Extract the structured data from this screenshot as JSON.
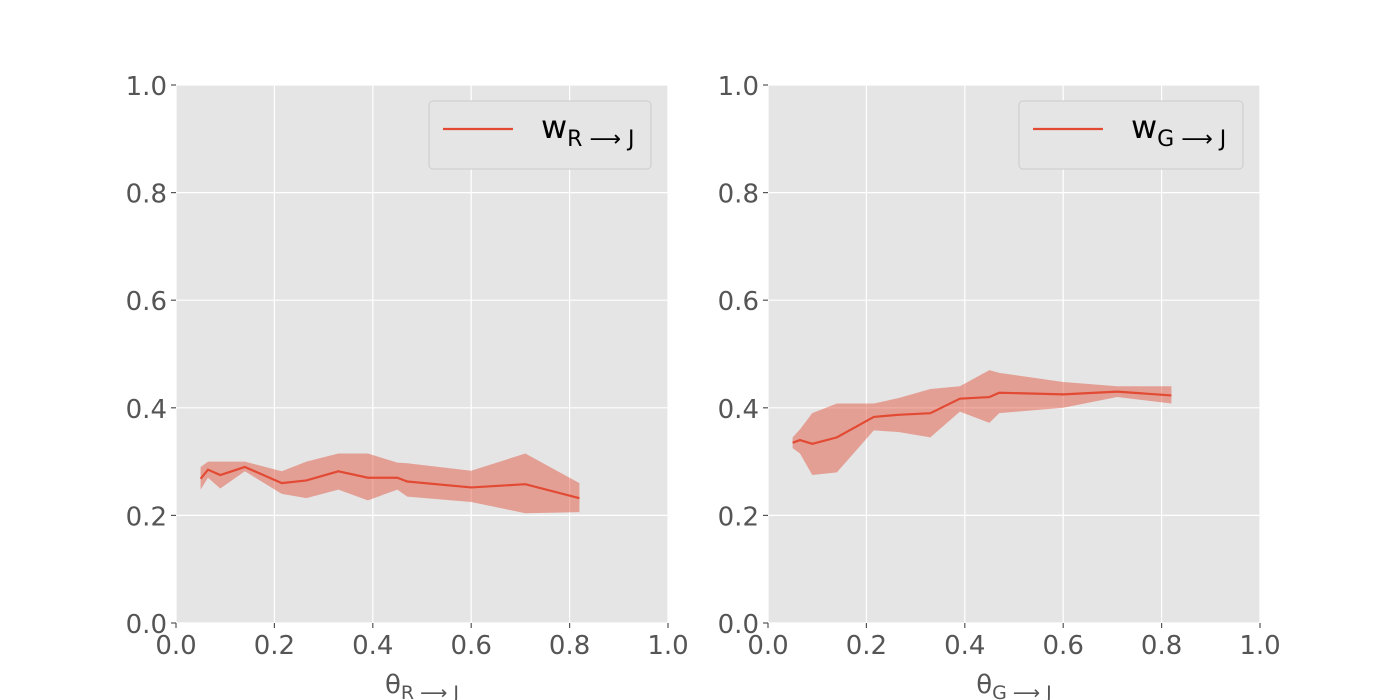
{
  "chart_data": [
    {
      "type": "line",
      "title": "",
      "xlabel": "θ",
      "xlabel_sub": "R ⟶ J",
      "ylabel": "",
      "xlim": [
        0.0,
        1.0
      ],
      "ylim": [
        0.0,
        1.0
      ],
      "xticks": [
        "0.0",
        "0.2",
        "0.4",
        "0.6",
        "0.8",
        "1.0"
      ],
      "yticks": [
        "0.0",
        "0.2",
        "0.4",
        "0.6",
        "0.8",
        "1.0"
      ],
      "grid": true,
      "legend_position": "top-right",
      "series": [
        {
          "name": "w",
          "name_sub": "R ⟶ J",
          "color": "#E24A33",
          "x": [
            0.05,
            0.065,
            0.09,
            0.14,
            0.215,
            0.265,
            0.33,
            0.39,
            0.45,
            0.47,
            0.6,
            0.71,
            0.82
          ],
          "y": [
            0.268,
            0.285,
            0.275,
            0.29,
            0.26,
            0.265,
            0.282,
            0.27,
            0.27,
            0.263,
            0.252,
            0.258,
            0.232
          ],
          "lower": [
            0.248,
            0.27,
            0.25,
            0.282,
            0.24,
            0.232,
            0.248,
            0.228,
            0.248,
            0.235,
            0.225,
            0.204,
            0.206
          ],
          "upper": [
            0.29,
            0.3,
            0.3,
            0.3,
            0.282,
            0.3,
            0.315,
            0.315,
            0.298,
            0.297,
            0.283,
            0.315,
            0.26
          ]
        }
      ]
    },
    {
      "type": "line",
      "title": "",
      "xlabel": "θ",
      "xlabel_sub": "G ⟶ J",
      "ylabel": "",
      "xlim": [
        0.0,
        1.0
      ],
      "ylim": [
        0.0,
        1.0
      ],
      "xticks": [
        "0.0",
        "0.2",
        "0.4",
        "0.6",
        "0.8",
        "1.0"
      ],
      "yticks": [
        "0.0",
        "0.2",
        "0.4",
        "0.6",
        "0.8",
        "1.0"
      ],
      "grid": true,
      "legend_position": "top-right",
      "series": [
        {
          "name": "w",
          "name_sub": "G ⟶ J",
          "color": "#E24A33",
          "x": [
            0.05,
            0.065,
            0.09,
            0.14,
            0.215,
            0.265,
            0.33,
            0.39,
            0.45,
            0.47,
            0.6,
            0.71,
            0.82
          ],
          "y": [
            0.335,
            0.34,
            0.333,
            0.345,
            0.383,
            0.387,
            0.39,
            0.417,
            0.42,
            0.428,
            0.425,
            0.43,
            0.423
          ],
          "lower": [
            0.325,
            0.315,
            0.275,
            0.28,
            0.358,
            0.355,
            0.345,
            0.393,
            0.372,
            0.39,
            0.4,
            0.42,
            0.408
          ],
          "upper": [
            0.345,
            0.36,
            0.39,
            0.408,
            0.408,
            0.418,
            0.435,
            0.44,
            0.47,
            0.465,
            0.448,
            0.44,
            0.44
          ]
        }
      ]
    }
  ]
}
